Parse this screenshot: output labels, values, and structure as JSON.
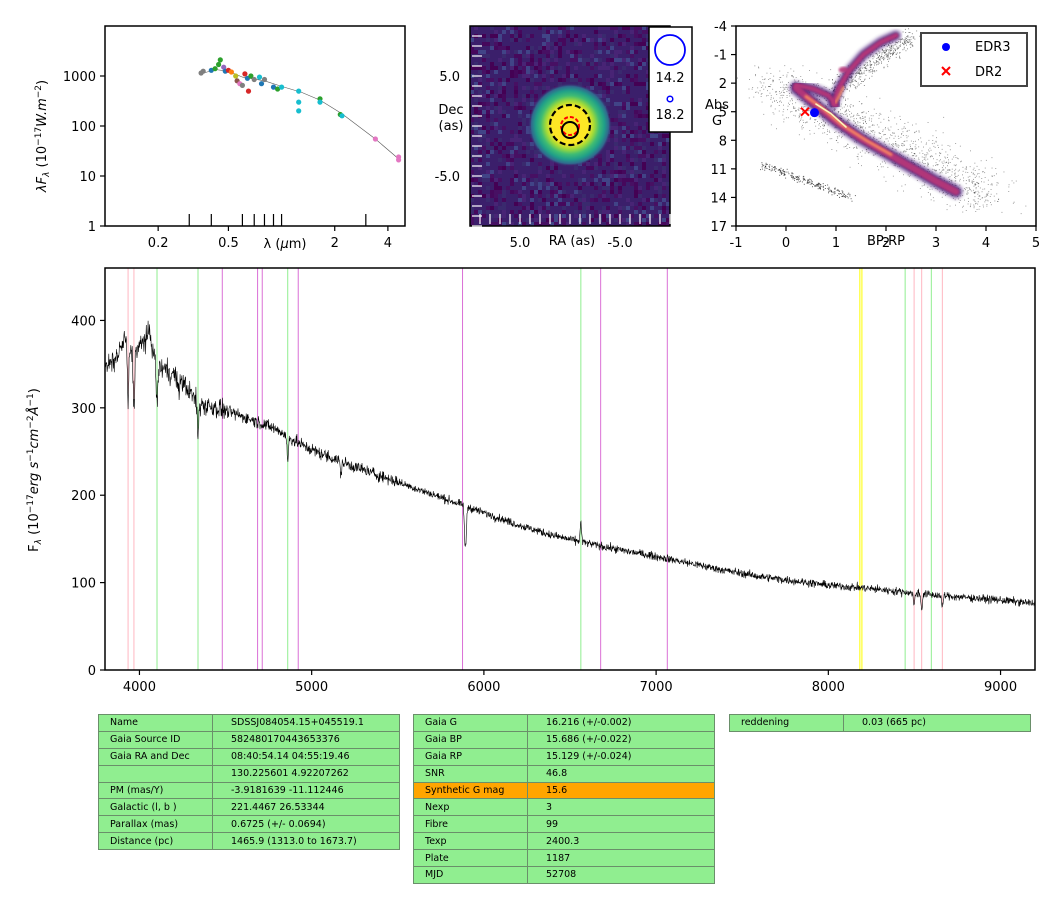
{
  "chart_data": [
    {
      "type": "scatter",
      "x_scale": "log",
      "y_scale": "log",
      "xlabel_math": "λ (μm)",
      "ylabel_math": "λF_λ (10^-17 W.m^-2)",
      "xlim": [
        0.1,
        5
      ],
      "ylim": [
        1,
        10000
      ],
      "x_tick_labels": [
        "0.2",
        "0.5",
        "2",
        "4"
      ],
      "x_ticks": [
        0.2,
        0.5,
        2,
        4
      ],
      "y_tick_labels": [
        "1",
        "10",
        "100",
        "1000"
      ],
      "y_ticks": [
        1,
        10,
        100,
        1000
      ],
      "points": [
        {
          "x": 0.35,
          "y": 1150,
          "color": "#7f7f7f"
        },
        {
          "x": 0.36,
          "y": 1250,
          "color": "#7f7f7f"
        },
        {
          "x": 0.4,
          "y": 1300,
          "color": "#1f77b4"
        },
        {
          "x": 0.42,
          "y": 1400,
          "color": "#2ca02c"
        },
        {
          "x": 0.44,
          "y": 1700,
          "color": "#2ca02c"
        },
        {
          "x": 0.45,
          "y": 2100,
          "color": "#2ca02c"
        },
        {
          "x": 0.47,
          "y": 1500,
          "color": "#9467bd"
        },
        {
          "x": 0.48,
          "y": 1250,
          "color": "#1f77b4"
        },
        {
          "x": 0.5,
          "y": 1300,
          "color": "#d62728"
        },
        {
          "x": 0.52,
          "y": 1200,
          "color": "#ff7f0e"
        },
        {
          "x": 0.55,
          "y": 1000,
          "color": "#bcbd22"
        },
        {
          "x": 0.56,
          "y": 800,
          "color": "#8c564b"
        },
        {
          "x": 0.58,
          "y": 700,
          "color": "#e377c2"
        },
        {
          "x": 0.6,
          "y": 650,
          "color": "#7f7f7f"
        },
        {
          "x": 0.62,
          "y": 1100,
          "color": "#d62728"
        },
        {
          "x": 0.64,
          "y": 900,
          "color": "#1f77b4"
        },
        {
          "x": 0.65,
          "y": 500,
          "color": "#d62728"
        },
        {
          "x": 0.67,
          "y": 1000,
          "color": "#2ca02c"
        },
        {
          "x": 0.7,
          "y": 850,
          "color": "#7f7f7f"
        },
        {
          "x": 0.75,
          "y": 950,
          "color": "#17becf"
        },
        {
          "x": 0.77,
          "y": 700,
          "color": "#1f77b4"
        },
        {
          "x": 0.8,
          "y": 850,
          "color": "#7f7f7f"
        },
        {
          "x": 0.9,
          "y": 600,
          "color": "#1f77b4"
        },
        {
          "x": 0.95,
          "y": 550,
          "color": "#2ca02c"
        },
        {
          "x": 1.0,
          "y": 600,
          "color": "#17becf"
        },
        {
          "x": 1.25,
          "y": 500,
          "color": "#17becf"
        },
        {
          "x": 1.25,
          "y": 300,
          "color": "#17becf"
        },
        {
          "x": 1.25,
          "y": 200,
          "color": "#17becf"
        },
        {
          "x": 1.65,
          "y": 350,
          "color": "#2ca02c"
        },
        {
          "x": 1.65,
          "y": 300,
          "color": "#17becf"
        },
        {
          "x": 2.15,
          "y": 170,
          "color": "#2ca02c"
        },
        {
          "x": 2.2,
          "y": 160,
          "color": "#17becf"
        },
        {
          "x": 3.4,
          "y": 55,
          "color": "#e377c2"
        },
        {
          "x": 4.6,
          "y": 24,
          "color": "#e377c2"
        },
        {
          "x": 4.6,
          "y": 21,
          "color": "#e377c2"
        }
      ]
    },
    {
      "type": "heatmap",
      "xlabel": "RA (as)",
      "ylabel": "Dec\n(as)",
      "xlim": [
        10,
        -10
      ],
      "ylim": [
        -10,
        10
      ],
      "x_tick_labels": [
        "5.0",
        "-5.0"
      ],
      "x_ticks": [
        5,
        -5
      ],
      "y_tick_labels": [
        "5.0",
        "-5.0"
      ],
      "y_ticks": [
        5,
        -5
      ],
      "source": {
        "ra": 0,
        "dec": 0,
        "core_radius": 2,
        "halo_radius": 4
      },
      "legend": [
        "14.2",
        "18.2"
      ],
      "colormap": "viridis"
    },
    {
      "type": "scatter",
      "xlabel": "BP-RP",
      "ylabel": "Abs\nG",
      "xlim": [
        -1,
        5
      ],
      "ylim": [
        17,
        -4
      ],
      "x_tick_labels": [
        "-1",
        "0",
        "1",
        "2",
        "3",
        "4",
        "5"
      ],
      "x_ticks": [
        -1,
        0,
        1,
        2,
        3,
        4,
        5
      ],
      "y_tick_labels": [
        "-4",
        "-1",
        "2",
        "5",
        "8",
        "11",
        "14",
        "17"
      ],
      "y_ticks": [
        -4,
        -1,
        2,
        5,
        8,
        11,
        14,
        17
      ],
      "series": [
        {
          "name": "EDR3",
          "points": [
            [
              0.57,
              5.1
            ]
          ],
          "color": "#0000ff",
          "marker": "circle"
        },
        {
          "name": "DR2",
          "points": [
            [
              0.38,
              5.0
            ]
          ],
          "color": "#ff0000",
          "marker": "x"
        }
      ],
      "legend_position": "top-right",
      "colormap": "inferno"
    },
    {
      "type": "line",
      "ylabel_math": "F_λ (10^-17 erg s^-1 cm^-2 Å^-1)",
      "xlim": [
        3800,
        9200
      ],
      "ylim": [
        0,
        460
      ],
      "x_tick_labels": [
        "4000",
        "5000",
        "6000",
        "7000",
        "8000",
        "9000"
      ],
      "x_ticks": [
        4000,
        5000,
        6000,
        7000,
        8000,
        9000
      ],
      "y_tick_labels": [
        "0",
        "100",
        "200",
        "300",
        "400"
      ],
      "y_ticks": [
        0,
        100,
        200,
        300,
        400
      ],
      "continuum": [
        [
          3800,
          345
        ],
        [
          3860,
          355
        ],
        [
          3920,
          380
        ],
        [
          3960,
          360
        ],
        [
          4000,
          370
        ],
        [
          4060,
          385
        ],
        [
          4100,
          345
        ],
        [
          4150,
          345
        ],
        [
          4250,
          330
        ],
        [
          4340,
          305
        ],
        [
          4450,
          300
        ],
        [
          4600,
          290
        ],
        [
          4700,
          283
        ],
        [
          4800,
          275
        ],
        [
          4900,
          262
        ],
        [
          5000,
          252
        ],
        [
          5200,
          236
        ],
        [
          5400,
          222
        ],
        [
          5600,
          208
        ],
        [
          5800,
          194
        ],
        [
          6000,
          180
        ],
        [
          6200,
          166
        ],
        [
          6400,
          154
        ],
        [
          6600,
          145
        ],
        [
          6800,
          137
        ],
        [
          7000,
          130
        ],
        [
          7200,
          122
        ],
        [
          7400,
          114
        ],
        [
          7600,
          107
        ],
        [
          7800,
          102
        ],
        [
          8000,
          97
        ],
        [
          8200,
          94
        ],
        [
          8400,
          90
        ],
        [
          8600,
          86
        ],
        [
          8800,
          83
        ],
        [
          9000,
          80
        ],
        [
          9200,
          76
        ]
      ],
      "absorption_features": [
        [
          3934,
          70
        ],
        [
          3968,
          60
        ],
        [
          4102,
          45
        ],
        [
          4227,
          20
        ],
        [
          4340,
          40
        ],
        [
          4861,
          30
        ],
        [
          5170,
          15
        ],
        [
          5890,
          35
        ],
        [
          5896,
          30
        ],
        [
          8498,
          15
        ],
        [
          8542,
          18
        ],
        [
          8662,
          15
        ]
      ],
      "emission_features": [
        [
          6563,
          22
        ]
      ],
      "line_markers": [
        {
          "x": 3934,
          "color": "#ffb6c1"
        },
        {
          "x": 3968,
          "color": "#ffb6c1"
        },
        {
          "x": 4102,
          "color": "#90ee90"
        },
        {
          "x": 4340,
          "color": "#90ee90"
        },
        {
          "x": 4481,
          "color": "#da70d6"
        },
        {
          "x": 4686,
          "color": "#da70d6"
        },
        {
          "x": 4713,
          "color": "#da70d6"
        },
        {
          "x": 4861,
          "color": "#90ee90"
        },
        {
          "x": 4922,
          "color": "#da70d6"
        },
        {
          "x": 5876,
          "color": "#da70d6"
        },
        {
          "x": 6563,
          "color": "#90ee90"
        },
        {
          "x": 6678,
          "color": "#da70d6"
        },
        {
          "x": 7065,
          "color": "#da70d6"
        },
        {
          "x": 8183,
          "color": "#ffff00"
        },
        {
          "x": 8195,
          "color": "#ffff00"
        },
        {
          "x": 8446,
          "color": "#90ee90"
        },
        {
          "x": 8498,
          "color": "#ffb6c1"
        },
        {
          "x": 8542,
          "color": "#ffb6c1"
        },
        {
          "x": 8598,
          "color": "#90ee90"
        },
        {
          "x": 8662,
          "color": "#ffb6c1"
        }
      ]
    }
  ],
  "tables": {
    "object": [
      [
        "Name",
        "SDSSJ084054.15+045519.1"
      ],
      [
        "Gaia Source ID",
        "582480170443653376"
      ],
      [
        "Gaia RA and Dec",
        "08:40:54.14    04:55:19.46"
      ],
      [
        "",
        "130.225601    4.92207262"
      ],
      [
        "PM (mas/Y)",
        "-3.9181639    -11.112446"
      ],
      [
        "Galactic (l, b )",
        "221.4467    26.53344"
      ],
      [
        "Parallax (mas)",
        "0.6725 (+/- 0.0694)"
      ],
      [
        "Distance (pc)",
        "1465.9 (1313.0 to 1673.7)"
      ]
    ],
    "photometry": [
      [
        "Gaia G",
        "16.216 (+/-0.002)"
      ],
      [
        "Gaia BP",
        "15.686 (+/-0.022)"
      ],
      [
        "Gaia RP",
        "15.129 (+/-0.024)"
      ],
      [
        "SNR",
        "46.8"
      ],
      [
        "Synthetic G mag",
        "15.6"
      ],
      [
        "Nexp",
        "3"
      ],
      [
        "Fibre",
        "99"
      ],
      [
        "Texp",
        "2400.3"
      ],
      [
        "Plate",
        "1187"
      ],
      [
        "MJD",
        "52708"
      ]
    ],
    "highlight_row": "Synthetic G mag",
    "extinction": [
      [
        "reddening",
        "0.03 (665 pc)"
      ]
    ]
  },
  "colors": {
    "table_cell": "#90ee90",
    "table_highlight": "#ffa500",
    "spectrum": "#000000"
  }
}
